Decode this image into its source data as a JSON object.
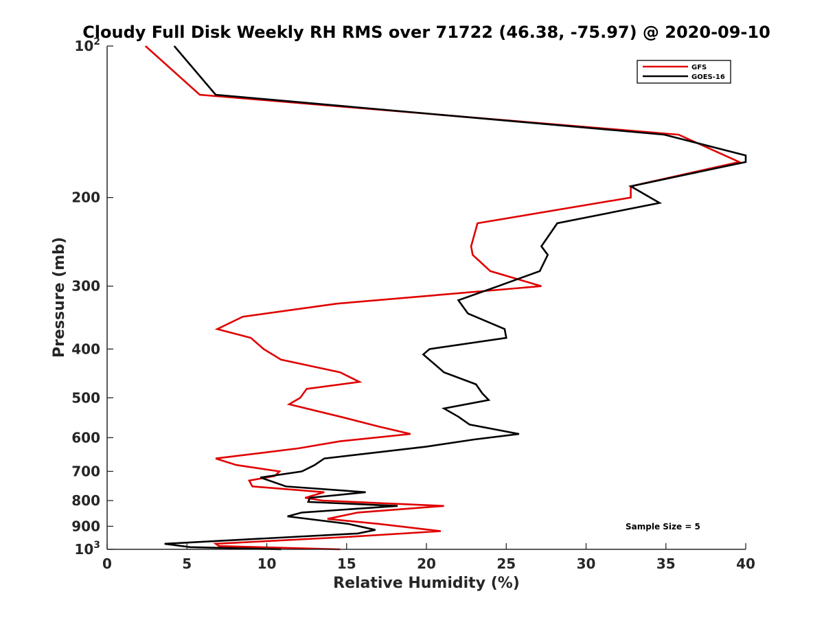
{
  "chart_data": {
    "type": "line",
    "title": "Cloudy Full Disk Weekly RH RMS over 71722 (46.38, -75.97) @ 2020-09-10",
    "xlabel": "Relative Humidity (%)",
    "ylabel": "Pressure (mb)",
    "xlim": [
      0,
      40
    ],
    "ylim": [
      100,
      1000
    ],
    "yscale": "log",
    "y_reversed": true,
    "xticks": [
      0,
      5,
      10,
      15,
      20,
      25,
      30,
      35,
      40
    ],
    "yticks": [
      {
        "value": 100,
        "label": "10",
        "exp": "2"
      },
      {
        "value": 200,
        "label": "200"
      },
      {
        "value": 300,
        "label": "300"
      },
      {
        "value": 400,
        "label": "400"
      },
      {
        "value": 500,
        "label": "500"
      },
      {
        "value": 600,
        "label": "600"
      },
      {
        "value": 700,
        "label": "700"
      },
      {
        "value": 800,
        "label": "800"
      },
      {
        "value": 900,
        "label": "900"
      },
      {
        "value": 1000,
        "label": "10",
        "exp": "3"
      }
    ],
    "legend_position": "top-right",
    "annotation": "Sample Size = 5",
    "series": [
      {
        "name": "GFS",
        "color": "#e00000",
        "points": [
          [
            2.4,
            100
          ],
          [
            5.8,
            125
          ],
          [
            35.8,
            150
          ],
          [
            39.6,
            170
          ],
          [
            32.8,
            190
          ],
          [
            32.8,
            200
          ],
          [
            23.2,
            225
          ],
          [
            22.8,
            250
          ],
          [
            22.9,
            260
          ],
          [
            24.0,
            280
          ],
          [
            27.2,
            300
          ],
          [
            14.4,
            325
          ],
          [
            8.5,
            345
          ],
          [
            6.9,
            365
          ],
          [
            9.0,
            380
          ],
          [
            9.8,
            400
          ],
          [
            10.9,
            420
          ],
          [
            14.6,
            445
          ],
          [
            15.8,
            465
          ],
          [
            12.5,
            480
          ],
          [
            12.1,
            500
          ],
          [
            11.4,
            515
          ],
          [
            14.6,
            545
          ],
          [
            17.0,
            570
          ],
          [
            19.0,
            590
          ],
          [
            14.6,
            610
          ],
          [
            12.0,
            630
          ],
          [
            6.8,
            660
          ],
          [
            8.1,
            680
          ],
          [
            10.8,
            700
          ],
          [
            10.5,
            715
          ],
          [
            8.9,
            730
          ],
          [
            9.1,
            750
          ],
          [
            13.6,
            770
          ],
          [
            12.4,
            790
          ],
          [
            13.5,
            800
          ],
          [
            21.1,
            820
          ],
          [
            15.7,
            845
          ],
          [
            13.8,
            870
          ],
          [
            17.0,
            890
          ],
          [
            20.9,
            920
          ],
          [
            15.0,
            945
          ],
          [
            6.8,
            975
          ],
          [
            7.0,
            985
          ],
          [
            14.6,
            1000
          ]
        ]
      },
      {
        "name": "GOES-16",
        "color": "#000000",
        "points": [
          [
            4.2,
            100
          ],
          [
            6.8,
            125
          ],
          [
            34.9,
            150
          ],
          [
            40.0,
            165
          ],
          [
            40.0,
            170
          ],
          [
            32.8,
            190
          ],
          [
            34.6,
            205
          ],
          [
            28.2,
            225
          ],
          [
            27.2,
            250
          ],
          [
            27.6,
            260
          ],
          [
            27.1,
            280
          ],
          [
            24.5,
            300
          ],
          [
            22.0,
            320
          ],
          [
            22.6,
            340
          ],
          [
            24.9,
            365
          ],
          [
            25.0,
            380
          ],
          [
            20.2,
            400
          ],
          [
            19.8,
            410
          ],
          [
            21.1,
            445
          ],
          [
            23.1,
            470
          ],
          [
            23.5,
            490
          ],
          [
            23.9,
            505
          ],
          [
            21.1,
            525
          ],
          [
            22.0,
            545
          ],
          [
            22.7,
            565
          ],
          [
            25.8,
            590
          ],
          [
            23.0,
            605
          ],
          [
            20.0,
            625
          ],
          [
            13.6,
            660
          ],
          [
            13.0,
            680
          ],
          [
            12.2,
            700
          ],
          [
            9.6,
            720
          ],
          [
            11.2,
            750
          ],
          [
            16.2,
            770
          ],
          [
            12.7,
            790
          ],
          [
            12.6,
            805
          ],
          [
            18.2,
            820
          ],
          [
            12.2,
            845
          ],
          [
            11.3,
            860
          ],
          [
            15.1,
            890
          ],
          [
            16.8,
            915
          ],
          [
            15.7,
            930
          ],
          [
            3.6,
            975
          ],
          [
            5.2,
            990
          ],
          [
            10.9,
            1000
          ]
        ]
      }
    ]
  }
}
